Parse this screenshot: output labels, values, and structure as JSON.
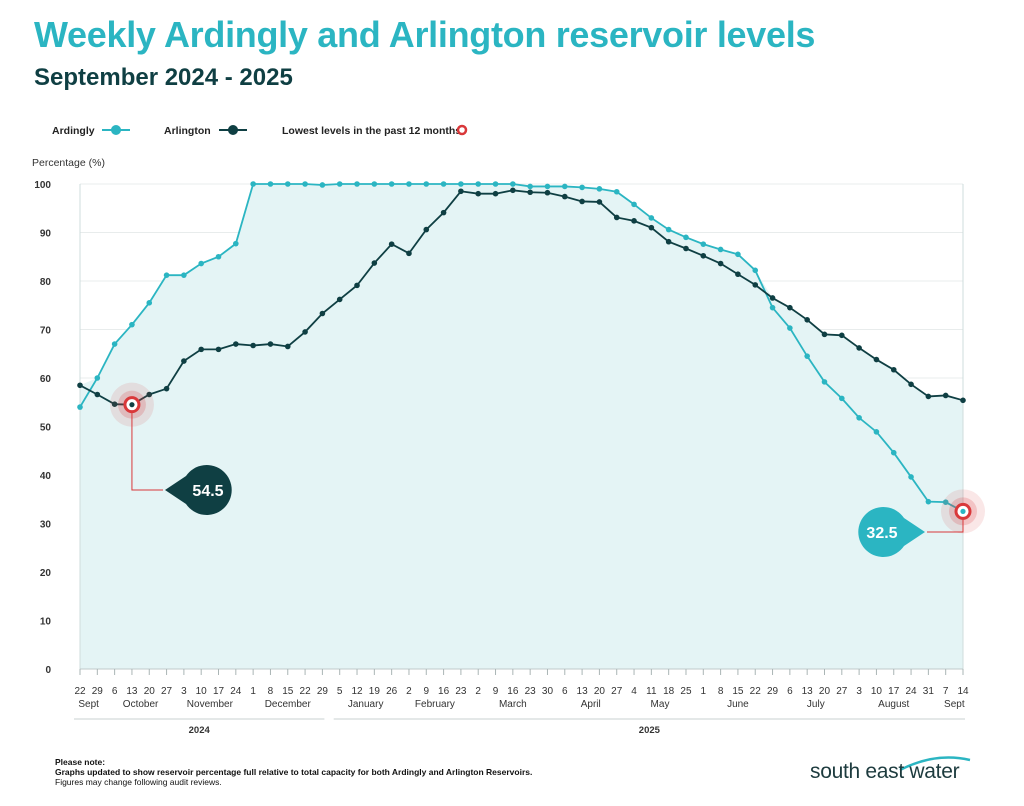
{
  "title": "Weekly Ardingly and Arlington reservoir levels",
  "subtitle": "September 2024 - 2025",
  "legend": {
    "ardingly": "Ardingly",
    "arlington": "Arlington",
    "lowest": "Lowest levels in the past 12 months"
  },
  "note": {
    "heading": "Please note:",
    "line1": "Graphs updated to show reservoir percentage full relative to total capacity for both Ardingly and Arlington Reservoirs.",
    "line2": "Figures may change following audit reviews."
  },
  "brand": "south east water",
  "colors": {
    "ardingly": "#2bb5c2",
    "arlington": "#0f3f43",
    "lowest": "#d9383a",
    "fill": "#e4f4f5"
  },
  "chart_data": {
    "type": "line",
    "ylabel": "Percentage (%)",
    "ylim": [
      0,
      100
    ],
    "yticks": [
      0,
      10,
      20,
      30,
      40,
      50,
      60,
      70,
      80,
      90,
      100
    ],
    "x": [
      "22",
      "29",
      "6",
      "13",
      "20",
      "27",
      "3",
      "10",
      "17",
      "24",
      "1",
      "8",
      "15",
      "22",
      "29",
      "5",
      "12",
      "19",
      "26",
      "2",
      "9",
      "16",
      "23",
      "2",
      "9",
      "16",
      "23",
      "30",
      "6",
      "13",
      "20",
      "27",
      "4",
      "11",
      "18",
      "25",
      "1",
      "8",
      "15",
      "22",
      "29",
      "6",
      "13",
      "20",
      "27",
      "3",
      "10",
      "17",
      "24",
      "31",
      "7",
      "14"
    ],
    "months": [
      {
        "label": "Sept",
        "start": 0,
        "end": 1
      },
      {
        "label": "October",
        "start": 2,
        "end": 5
      },
      {
        "label": "November",
        "start": 6,
        "end": 9
      },
      {
        "label": "December",
        "start": 10,
        "end": 14
      },
      {
        "label": "January",
        "start": 15,
        "end": 18
      },
      {
        "label": "February",
        "start": 19,
        "end": 22
      },
      {
        "label": "March",
        "start": 23,
        "end": 27
      },
      {
        "label": "April",
        "start": 28,
        "end": 31
      },
      {
        "label": "May",
        "start": 32,
        "end": 35
      },
      {
        "label": "June",
        "start": 36,
        "end": 40
      },
      {
        "label": "July",
        "start": 41,
        "end": 44
      },
      {
        "label": "August",
        "start": 45,
        "end": 49
      },
      {
        "label": "Sept",
        "start": 50,
        "end": 51
      }
    ],
    "years": [
      {
        "label": "2024",
        "start": 0,
        "end": 14
      },
      {
        "label": "2025",
        "start": 15,
        "end": 51
      }
    ],
    "series": [
      {
        "name": "Ardingly",
        "values": [
          54,
          60,
          67,
          71,
          75.5,
          81.2,
          81.2,
          83.6,
          85,
          87.7,
          100,
          100,
          100,
          100,
          99.8,
          100,
          100,
          100,
          100,
          100,
          100,
          100,
          100,
          100,
          100,
          100,
          99.5,
          99.5,
          99.5,
          99.3,
          99,
          98.4,
          95.8,
          93,
          90.6,
          89,
          87.6,
          86.5,
          85.5,
          82.2,
          74.5,
          70.3,
          64.5,
          59.2,
          55.8,
          51.8,
          48.9,
          44.6,
          39.6,
          34.5,
          34.4,
          32.5
        ]
      },
      {
        "name": "Arlington",
        "values": [
          58.5,
          56.6,
          54.6,
          54.5,
          56.6,
          57.8,
          63.5,
          65.9,
          65.9,
          67,
          66.7,
          67,
          66.5,
          69.5,
          73.3,
          76.2,
          79.1,
          83.7,
          87.6,
          85.7,
          90.6,
          94.1,
          98.5,
          98,
          98,
          98.7,
          98.3,
          98.2,
          97.4,
          96.4,
          96.3,
          93.1,
          92.4,
          91,
          88.1,
          86.7,
          85.2,
          83.6,
          81.4,
          79.2,
          76.5,
          74.5,
          72,
          69,
          68.8,
          66.2,
          63.8,
          61.7,
          58.7,
          56.2,
          56.4,
          55.4
        ]
      }
    ],
    "annotations": [
      {
        "label": "54.5",
        "series": "Arlington",
        "index": 3,
        "value": 54.5
      },
      {
        "label": "32.5",
        "series": "Ardingly",
        "index": 51,
        "value": 32.5
      }
    ]
  }
}
